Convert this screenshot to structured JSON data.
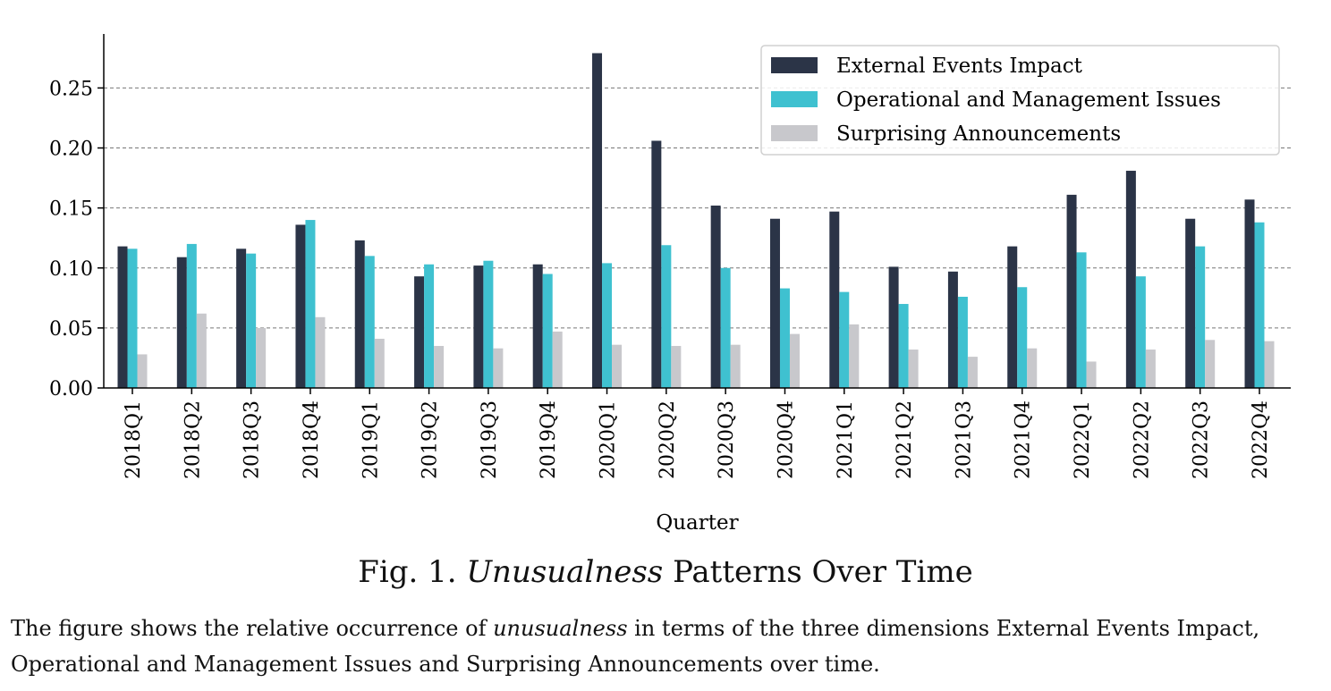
{
  "figure": {
    "label": "Fig. 1.",
    "title_italic": "Unusualness",
    "title_rest": "Patterns Over Time",
    "note_part1": "The figure shows the relative occurrence of",
    "note_italic": "unusualness",
    "note_part2": "in terms of the three dimensions External Events Impact, Operational and Management Issues and Surprising Announcements over time."
  },
  "chart_data": {
    "type": "bar",
    "xlabel": "Quarter",
    "ylabel": "",
    "ylim": [
      0,
      0.295
    ],
    "yticks": [
      "0.00",
      "0.05",
      "0.10",
      "0.15",
      "0.20",
      "0.25"
    ],
    "grid": "horizontal dashed",
    "legend_position": "top-right",
    "categories": [
      "2018Q1",
      "2018Q2",
      "2018Q3",
      "2018Q4",
      "2019Q1",
      "2019Q2",
      "2019Q3",
      "2019Q4",
      "2020Q1",
      "2020Q2",
      "2020Q3",
      "2020Q4",
      "2021Q1",
      "2021Q2",
      "2021Q3",
      "2021Q4",
      "2022Q1",
      "2022Q2",
      "2022Q3",
      "2022Q4"
    ],
    "series": [
      {
        "name": "External Events Impact",
        "color": "#2b3447",
        "values": [
          0.118,
          0.109,
          0.116,
          0.136,
          0.123,
          0.093,
          0.102,
          0.103,
          0.279,
          0.206,
          0.152,
          0.141,
          0.147,
          0.101,
          0.097,
          0.118,
          0.161,
          0.181,
          0.141,
          0.157
        ]
      },
      {
        "name": "Operational and Management Issues",
        "color": "#3fc1d0",
        "values": [
          0.116,
          0.12,
          0.112,
          0.14,
          0.11,
          0.103,
          0.106,
          0.095,
          0.104,
          0.119,
          0.1,
          0.083,
          0.08,
          0.07,
          0.076,
          0.084,
          0.113,
          0.093,
          0.118,
          0.138
        ]
      },
      {
        "name": "Surprising Announcements",
        "color": "#c8c8cc",
        "values": [
          0.028,
          0.062,
          0.05,
          0.059,
          0.041,
          0.035,
          0.033,
          0.047,
          0.036,
          0.035,
          0.036,
          0.045,
          0.053,
          0.032,
          0.026,
          0.033,
          0.022,
          0.032,
          0.04,
          0.039
        ]
      }
    ]
  }
}
